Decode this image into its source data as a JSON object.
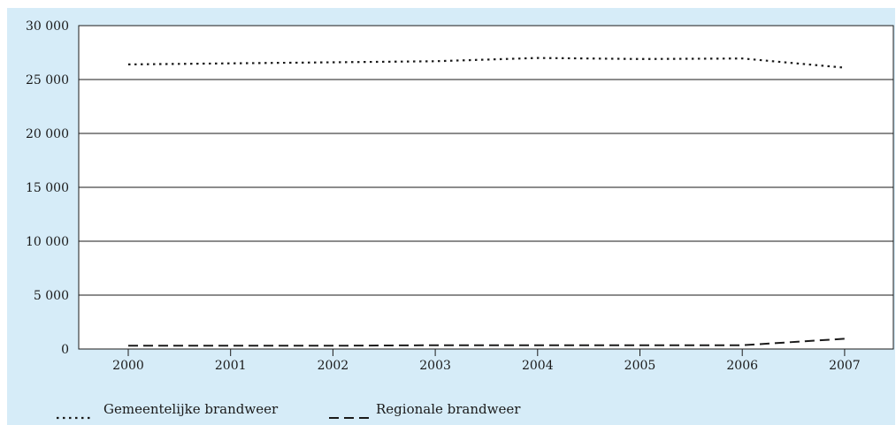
{
  "chart_data": {
    "type": "line",
    "title": "",
    "xlabel": "",
    "ylabel": "",
    "x": [
      "2000",
      "2001",
      "2002",
      "2003",
      "2004",
      "2005",
      "2006",
      "2007"
    ],
    "ylim": [
      0,
      30000
    ],
    "yticks": [
      0,
      5000,
      10000,
      15000,
      20000,
      25000,
      30000
    ],
    "ytick_labels": [
      "0",
      "5 000",
      "10 000",
      "15 000",
      "20 000",
      "25 000",
      "30 000"
    ],
    "grid": "horizontal",
    "legend_position": "bottom-left",
    "series": [
      {
        "name": "Gemeentelijke brandweer",
        "style": "dotted",
        "values": [
          26400,
          26500,
          26600,
          26700,
          27000,
          26900,
          26950,
          26100
        ]
      },
      {
        "name": "Regionale brandweer",
        "style": "dashed",
        "values": [
          300,
          300,
          300,
          350,
          350,
          350,
          350,
          950
        ]
      }
    ],
    "colors": {
      "background": "#d6ecf8",
      "plot": "#ffffff",
      "line": "#1a1a1a"
    }
  }
}
